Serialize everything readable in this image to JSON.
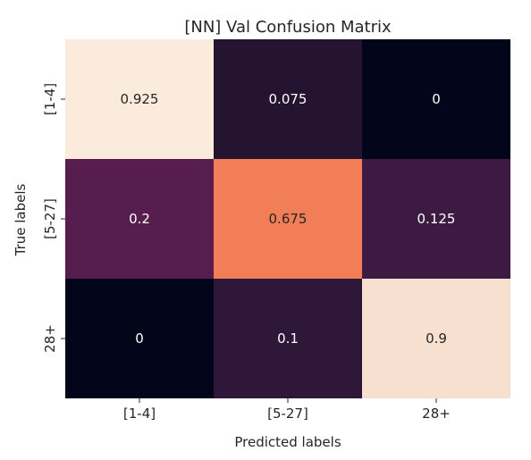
{
  "chart_data": {
    "type": "heatmap",
    "title": "[NN] Val Confusion Matrix",
    "xlabel": "Predicted labels",
    "ylabel": "True labels",
    "x_categories": [
      "[1-4]",
      "[5-27]",
      "28+"
    ],
    "y_categories": [
      "[1-4]",
      "[5-27]",
      "28+"
    ],
    "values": [
      [
        0.925,
        0.075,
        0
      ],
      [
        0.2,
        0.675,
        0.125
      ],
      [
        0,
        0.1,
        0.9
      ]
    ],
    "value_labels": [
      [
        "0.925",
        "0.075",
        "0"
      ],
      [
        "0.2",
        "0.675",
        "0.125"
      ],
      [
        "0",
        "0.1",
        "0.9"
      ]
    ],
    "colormap": "rocket",
    "cell_colors": [
      [
        "#faebdd",
        "#251431",
        "#03051a"
      ],
      [
        "#571d4e",
        "#f27e58",
        "#3c1a42"
      ],
      [
        "#03051a",
        "#2e1739",
        "#f8e0d1"
      ]
    ],
    "colorbar": false,
    "grid": false
  }
}
